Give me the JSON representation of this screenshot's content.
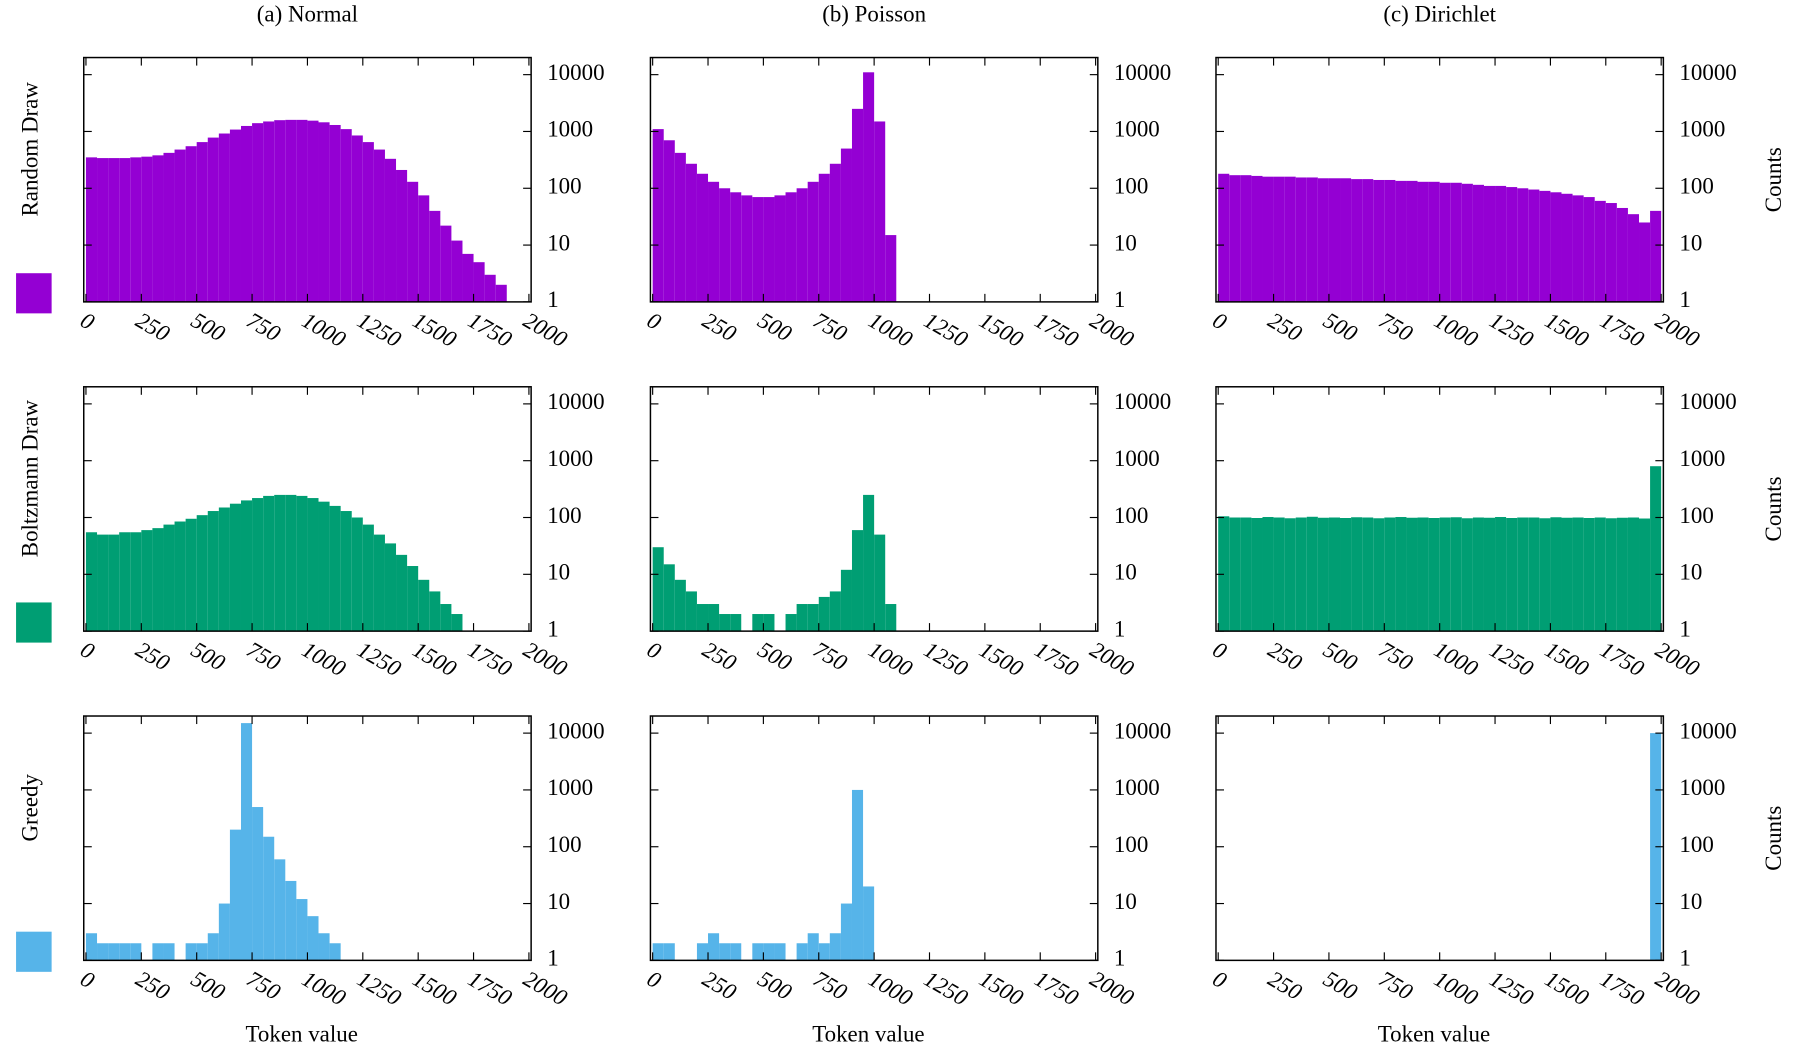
{
  "legend": [
    {
      "name": "Random Draw",
      "color": "#9400d3"
    },
    {
      "name": "Boltzmann Draw",
      "color": "#009e73"
    },
    {
      "name": "Greedy",
      "color": "#56b4e9"
    }
  ],
  "chart_data": [
    {
      "type": "histogram",
      "title": "(a) Normal",
      "color": "#9400d3",
      "log_y": true,
      "xlim": [
        -10,
        2010
      ],
      "ylim": [
        1,
        20000
      ],
      "xticks": [
        0,
        250,
        500,
        750,
        1000,
        1250,
        1500,
        1750,
        2000
      ],
      "yticks": [
        1,
        10,
        100,
        1000,
        10000
      ],
      "bins": [
        0,
        50,
        100,
        150,
        200,
        250,
        300,
        350,
        400,
        450,
        500,
        550,
        600,
        650,
        700,
        750,
        800,
        850,
        900,
        950,
        1000,
        1050,
        1100,
        1150,
        1200,
        1250,
        1300,
        1350,
        1400,
        1450,
        1500,
        1550,
        1600,
        1650,
        1700,
        1750,
        1800,
        1850,
        1900,
        1950,
        2000
      ],
      "values": [
        350,
        340,
        340,
        340,
        350,
        360,
        380,
        420,
        480,
        550,
        650,
        780,
        920,
        1080,
        1250,
        1400,
        1500,
        1580,
        1600,
        1600,
        1550,
        1450,
        1300,
        1100,
        850,
        650,
        480,
        330,
        210,
        130,
        75,
        40,
        22,
        12,
        7,
        5,
        3,
        2,
        1,
        0
      ]
    },
    {
      "type": "histogram",
      "title": "(b) Poisson",
      "color": "#9400d3",
      "log_y": true,
      "xlim": [
        -10,
        2010
      ],
      "ylim": [
        1,
        20000
      ],
      "xticks": [
        0,
        250,
        500,
        750,
        1000,
        1250,
        1500,
        1750,
        2000
      ],
      "yticks": [
        1,
        10,
        100,
        1000,
        10000
      ],
      "bins": [
        0,
        50,
        100,
        150,
        200,
        250,
        300,
        350,
        400,
        450,
        500,
        550,
        600,
        650,
        700,
        750,
        800,
        850,
        900,
        950,
        1000,
        1050,
        1100,
        1150,
        1200,
        1250,
        1300,
        1350,
        1400,
        1450,
        1500,
        1550,
        1600,
        1650,
        1700,
        1750,
        1800,
        1850,
        1900,
        1950,
        2000
      ],
      "values": [
        1100,
        700,
        420,
        270,
        180,
        130,
        100,
        85,
        75,
        70,
        70,
        75,
        85,
        100,
        130,
        180,
        270,
        500,
        2500,
        11000,
        1500,
        15,
        0,
        0,
        0,
        0,
        0,
        0,
        0,
        0,
        0,
        0,
        0,
        0,
        0,
        0,
        0,
        0,
        0,
        0
      ]
    },
    {
      "type": "histogram",
      "title": "(c) Dirichlet",
      "y_label": "Counts",
      "color": "#9400d3",
      "log_y": true,
      "xlim": [
        -10,
        2010
      ],
      "ylim": [
        1,
        20000
      ],
      "xticks": [
        0,
        250,
        500,
        750,
        1000,
        1250,
        1500,
        1750,
        2000
      ],
      "yticks": [
        1,
        10,
        100,
        1000,
        10000
      ],
      "bins": [
        0,
        50,
        100,
        150,
        200,
        250,
        300,
        350,
        400,
        450,
        500,
        550,
        600,
        650,
        700,
        750,
        800,
        850,
        900,
        950,
        1000,
        1050,
        1100,
        1150,
        1200,
        1250,
        1300,
        1350,
        1400,
        1450,
        1500,
        1550,
        1600,
        1650,
        1700,
        1750,
        1800,
        1850,
        1900,
        1950,
        2000
      ],
      "values": [
        180,
        170,
        170,
        165,
        160,
        160,
        160,
        155,
        155,
        150,
        150,
        150,
        145,
        145,
        140,
        140,
        135,
        135,
        130,
        130,
        125,
        125,
        120,
        115,
        110,
        110,
        105,
        100,
        95,
        90,
        85,
        80,
        75,
        70,
        60,
        55,
        45,
        35,
        25,
        40
      ]
    },
    {
      "type": "histogram",
      "color": "#009e73",
      "log_y": true,
      "xlim": [
        -10,
        2010
      ],
      "ylim": [
        1,
        20000
      ],
      "xticks": [
        0,
        250,
        500,
        750,
        1000,
        1250,
        1500,
        1750,
        2000
      ],
      "yticks": [
        1,
        10,
        100,
        1000,
        10000
      ],
      "bins": [
        0,
        50,
        100,
        150,
        200,
        250,
        300,
        350,
        400,
        450,
        500,
        550,
        600,
        650,
        700,
        750,
        800,
        850,
        900,
        950,
        1000,
        1050,
        1100,
        1150,
        1200,
        1250,
        1300,
        1350,
        1400,
        1450,
        1500,
        1550,
        1600,
        1650,
        1700,
        1750,
        1800,
        1850,
        1900,
        1950,
        2000
      ],
      "values": [
        55,
        50,
        50,
        55,
        55,
        60,
        65,
        75,
        85,
        95,
        110,
        130,
        150,
        175,
        200,
        220,
        240,
        250,
        250,
        240,
        220,
        190,
        160,
        130,
        100,
        75,
        50,
        35,
        22,
        14,
        8,
        5,
        3,
        2,
        1,
        1,
        0,
        0,
        1,
        0
      ]
    },
    {
      "type": "histogram",
      "color": "#009e73",
      "log_y": true,
      "xlim": [
        -10,
        2010
      ],
      "ylim": [
        1,
        20000
      ],
      "xticks": [
        0,
        250,
        500,
        750,
        1000,
        1250,
        1500,
        1750,
        2000
      ],
      "yticks": [
        1,
        10,
        100,
        1000,
        10000
      ],
      "bins": [
        0,
        50,
        100,
        150,
        200,
        250,
        300,
        350,
        400,
        450,
        500,
        550,
        600,
        650,
        700,
        750,
        800,
        850,
        900,
        950,
        1000,
        1050,
        1100,
        1150,
        1200,
        1250,
        1300,
        1350,
        1400,
        1450,
        1500,
        1550,
        1600,
        1650,
        1700,
        1750,
        1800,
        1850,
        1900,
        1950,
        2000
      ],
      "values": [
        30,
        15,
        8,
        5,
        3,
        3,
        2,
        2,
        1,
        2,
        2,
        1,
        2,
        3,
        3,
        4,
        5,
        12,
        60,
        250,
        50,
        3,
        0,
        0,
        0,
        0,
        0,
        0,
        0,
        0,
        0,
        0,
        0,
        0,
        0,
        0,
        0,
        0,
        0,
        0
      ]
    },
    {
      "type": "histogram",
      "y_label": "Counts",
      "color": "#009e73",
      "log_y": true,
      "xlim": [
        -10,
        2010
      ],
      "ylim": [
        1,
        20000
      ],
      "xticks": [
        0,
        250,
        500,
        750,
        1000,
        1250,
        1500,
        1750,
        2000
      ],
      "yticks": [
        1,
        10,
        100,
        1000,
        10000
      ],
      "bins": [
        0,
        50,
        100,
        150,
        200,
        250,
        300,
        350,
        400,
        450,
        500,
        550,
        600,
        650,
        700,
        750,
        800,
        850,
        900,
        950,
        1000,
        1050,
        1100,
        1150,
        1200,
        1250,
        1300,
        1350,
        1400,
        1450,
        1500,
        1550,
        1600,
        1650,
        1700,
        1750,
        1800,
        1850,
        1900,
        1950,
        2000
      ],
      "values": [
        105,
        100,
        100,
        98,
        102,
        100,
        97,
        100,
        103,
        99,
        100,
        98,
        101,
        100,
        97,
        100,
        102,
        99,
        100,
        98,
        100,
        101,
        97,
        100,
        99,
        102,
        98,
        100,
        100,
        97,
        101,
        99,
        100,
        98,
        100,
        97,
        99,
        100,
        96,
        800
      ]
    },
    {
      "type": "histogram",
      "x_label": "Token value",
      "color": "#56b4e9",
      "log_y": true,
      "xlim": [
        -10,
        2010
      ],
      "ylim": [
        1,
        20000
      ],
      "xticks": [
        0,
        250,
        500,
        750,
        1000,
        1250,
        1500,
        1750,
        2000
      ],
      "yticks": [
        1,
        10,
        100,
        1000,
        10000
      ],
      "bins": [
        0,
        50,
        100,
        150,
        200,
        250,
        300,
        350,
        400,
        450,
        500,
        550,
        600,
        650,
        700,
        750,
        800,
        850,
        900,
        950,
        1000,
        1050,
        1100,
        1150,
        1200,
        1250,
        1300,
        1350,
        1400,
        1450,
        1500,
        1550,
        1600,
        1650,
        1700,
        1750,
        1800,
        1850,
        1900,
        1950,
        2000
      ],
      "values": [
        3,
        2,
        2,
        2,
        2,
        1,
        2,
        2,
        1,
        2,
        2,
        3,
        10,
        200,
        15000,
        500,
        150,
        60,
        25,
        12,
        6,
        3,
        2,
        1,
        0,
        1,
        0,
        1,
        0,
        0,
        0,
        0,
        0,
        0,
        0,
        0,
        0,
        0,
        1,
        0
      ]
    },
    {
      "type": "histogram",
      "x_label": "Token value",
      "color": "#56b4e9",
      "log_y": true,
      "xlim": [
        -10,
        2010
      ],
      "ylim": [
        1,
        20000
      ],
      "xticks": [
        0,
        250,
        500,
        750,
        1000,
        1250,
        1500,
        1750,
        2000
      ],
      "yticks": [
        1,
        10,
        100,
        1000,
        10000
      ],
      "bins": [
        0,
        50,
        100,
        150,
        200,
        250,
        300,
        350,
        400,
        450,
        500,
        550,
        600,
        650,
        700,
        750,
        800,
        850,
        900,
        950,
        1000,
        1050,
        1100,
        1150,
        1200,
        1250,
        1300,
        1350,
        1400,
        1450,
        1500,
        1550,
        1600,
        1650,
        1700,
        1750,
        1800,
        1850,
        1900,
        1950,
        2000
      ],
      "values": [
        2,
        2,
        1,
        1,
        2,
        3,
        2,
        2,
        1,
        2,
        2,
        2,
        1,
        2,
        3,
        2,
        3,
        10,
        1000,
        20,
        0,
        0,
        0,
        0,
        0,
        0,
        0,
        0,
        0,
        0,
        0,
        0,
        0,
        0,
        0,
        0,
        0,
        0,
        0,
        0
      ]
    },
    {
      "type": "histogram",
      "x_label": "Token value",
      "y_label": "Counts",
      "color": "#56b4e9",
      "log_y": true,
      "xlim": [
        -10,
        2010
      ],
      "ylim": [
        1,
        20000
      ],
      "xticks": [
        0,
        250,
        500,
        750,
        1000,
        1250,
        1500,
        1750,
        2000
      ],
      "yticks": [
        1,
        10,
        100,
        1000,
        10000
      ],
      "bins": [
        0,
        50,
        100,
        150,
        200,
        250,
        300,
        350,
        400,
        450,
        500,
        550,
        600,
        650,
        700,
        750,
        800,
        850,
        900,
        950,
        1000,
        1050,
        1100,
        1150,
        1200,
        1250,
        1300,
        1350,
        1400,
        1450,
        1500,
        1550,
        1600,
        1650,
        1700,
        1750,
        1800,
        1850,
        1900,
        1950,
        2000
      ],
      "values": [
        0,
        0,
        0,
        0,
        0,
        0,
        0,
        0,
        0,
        0,
        0,
        0,
        0,
        0,
        0,
        0,
        0,
        0,
        0,
        0,
        0,
        0,
        0,
        0,
        0,
        0,
        0,
        0,
        0,
        0,
        0,
        0,
        0,
        0,
        0,
        0,
        0,
        0,
        0,
        10000
      ]
    }
  ]
}
